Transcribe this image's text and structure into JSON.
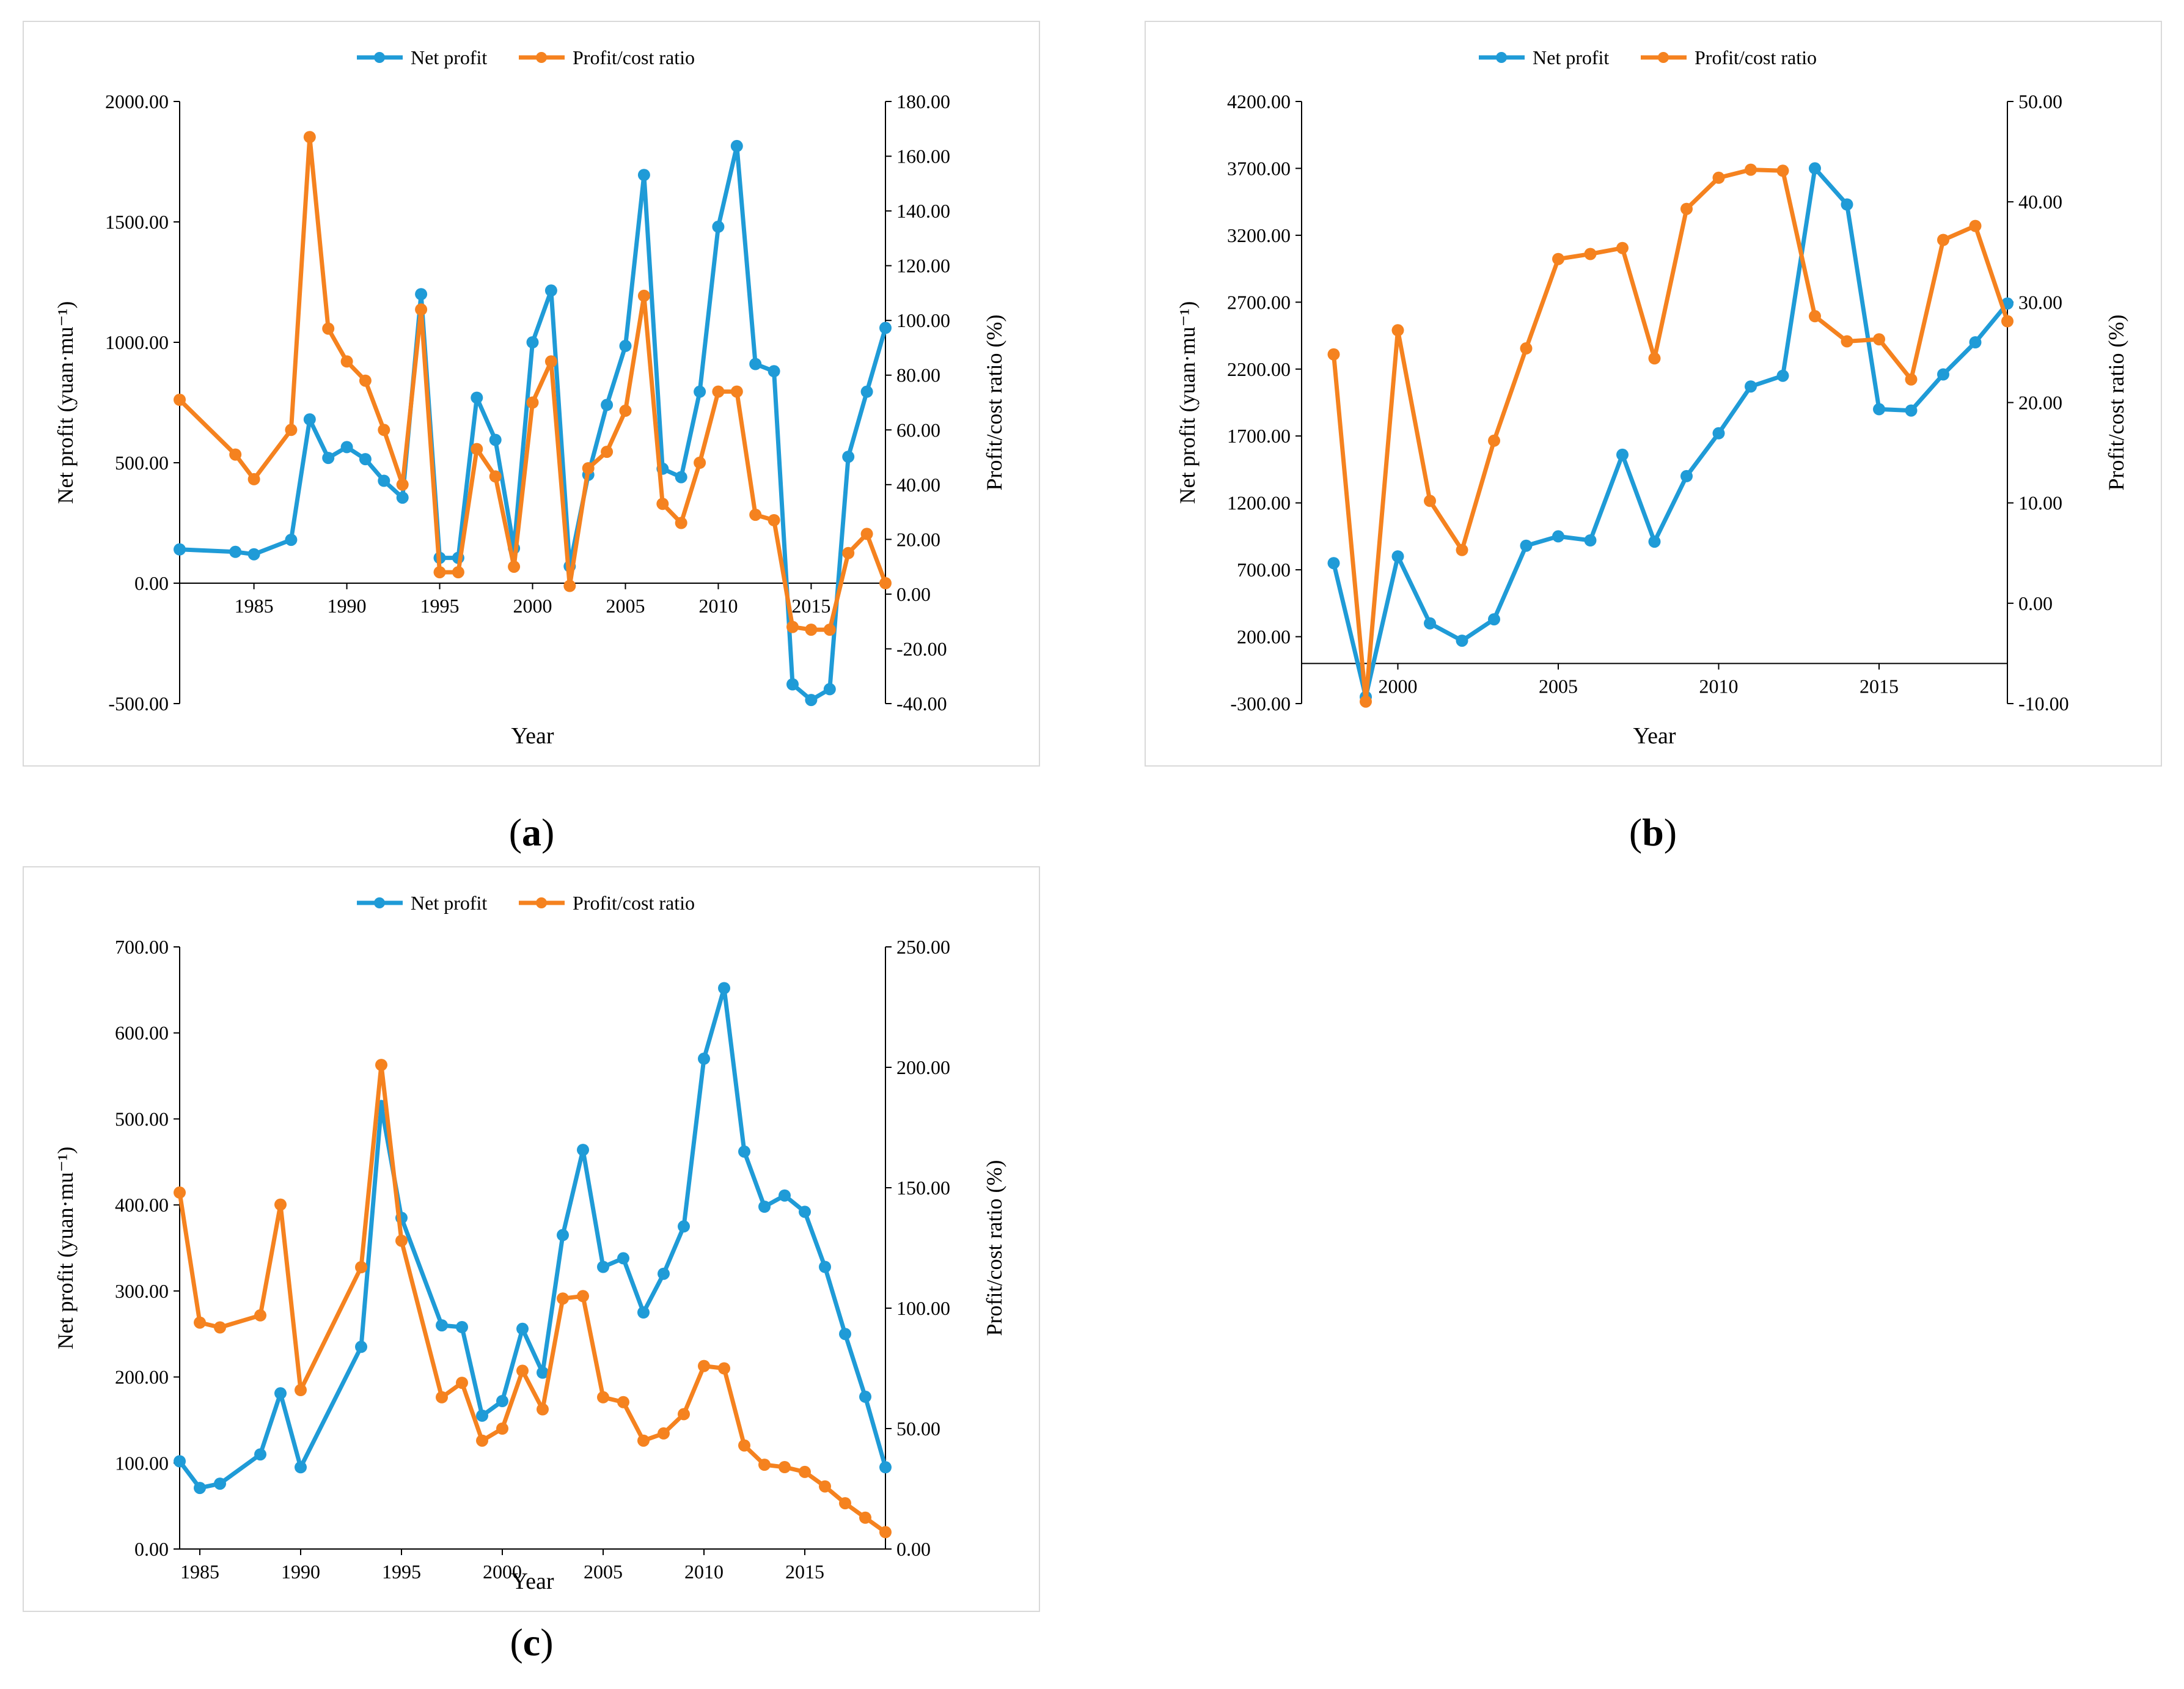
{
  "captions": {
    "a": {
      "open": "(",
      "letter": "a",
      "close": ")"
    },
    "b": {
      "open": "(",
      "letter": "b",
      "close": ")"
    },
    "c": {
      "open": "(",
      "letter": "c",
      "close": ")"
    }
  },
  "colors": {
    "net_profit": "#1f9bd7",
    "ratio": "#f5821f",
    "axis": "#000000",
    "border": "#d9d9d9"
  },
  "chart_data": [
    {
      "id": "a",
      "type": "line",
      "title": "",
      "xlabel": "Year",
      "ylabel_left": "Net profit (yuan·mu⁻¹)",
      "ylabel_right": "Profit/cost ratio (%)",
      "legend": {
        "placement": "top-center",
        "entries": [
          "Net profit",
          "Profit/cost ratio"
        ]
      },
      "grid": false,
      "xlim": [
        1981,
        2019
      ],
      "xticks": [
        1985,
        1990,
        1995,
        2000,
        2005,
        2010,
        2015
      ],
      "ylim_left": [
        -500,
        2000
      ],
      "yticks_left": [
        "-500.00",
        "0.00",
        "500.00",
        "1000.00",
        "1500.00",
        "2000.00"
      ],
      "ylim_right": [
        -40,
        180
      ],
      "yticks_right": [
        "-40.00",
        "-20.00",
        "0.00",
        "20.00",
        "40.00",
        "60.00",
        "80.00",
        "100.00",
        "120.00",
        "140.00",
        "160.00",
        "180.00"
      ],
      "series": [
        {
          "name": "Net profit",
          "axis": "left",
          "x": [
            1981,
            1984,
            1985,
            1987,
            1988,
            1989,
            1990,
            1991,
            1992,
            1993,
            1994,
            1995,
            1996,
            1997,
            1998,
            1999,
            2000,
            2001,
            2002,
            2003,
            2004,
            2005,
            2006,
            2007,
            2008,
            2009,
            2010,
            2011,
            2012,
            2013,
            2014,
            2015,
            2016,
            2017,
            2018,
            2019
          ],
          "y": [
            140,
            130,
            120,
            180,
            680,
            520,
            565,
            515,
            425,
            355,
            1200,
            105,
            105,
            770,
            595,
            145,
            1000,
            1215,
            70,
            450,
            740,
            985,
            1695,
            475,
            440,
            795,
            1480,
            1815,
            910,
            880,
            -420,
            -485,
            -440,
            525,
            795,
            1060
          ]
        },
        {
          "name": "Profit/cost ratio",
          "axis": "right",
          "x": [
            1981,
            1984,
            1985,
            1987,
            1988,
            1989,
            1990,
            1991,
            1992,
            1993,
            1994,
            1995,
            1996,
            1997,
            1998,
            1999,
            2000,
            2001,
            2002,
            2003,
            2004,
            2005,
            2006,
            2007,
            2008,
            2009,
            2010,
            2011,
            2012,
            2013,
            2014,
            2015,
            2016,
            2017,
            2018,
            2019
          ],
          "y": [
            71,
            51,
            42,
            60,
            167,
            97,
            85,
            78,
            60,
            40,
            104,
            8,
            8,
            53,
            43,
            10,
            70,
            85,
            3,
            46,
            52,
            67,
            109,
            33,
            26,
            48,
            74,
            74,
            29,
            27,
            -12,
            -13,
            -13,
            15,
            22,
            4
          ]
        }
      ]
    },
    {
      "id": "b",
      "type": "line",
      "title": "",
      "xlabel": "Year",
      "ylabel_left": "Net profit (yuan·mu⁻¹)",
      "ylabel_right": "Profit/cost ratio (%)",
      "legend": {
        "placement": "top-center",
        "entries": [
          "Net profit",
          "Profit/cost ratio"
        ]
      },
      "grid": false,
      "xlim": [
        1997,
        2019
      ],
      "xticks": [
        2000,
        2005,
        2010,
        2015
      ],
      "ylim_left": [
        -300,
        4200
      ],
      "yticks_left": [
        "-300.00",
        "200.00",
        "700.00",
        "1200.00",
        "1700.00",
        "2200.00",
        "2700.00",
        "3200.00",
        "3700.00",
        "4200.00"
      ],
      "ylim_right": [
        -10,
        50
      ],
      "yticks_right": [
        "-10.00",
        "0.00",
        "10.00",
        "20.00",
        "30.00",
        "40.00",
        "50.00"
      ],
      "series": [
        {
          "name": "Net profit",
          "axis": "left",
          "x": [
            1998,
            1999,
            2000,
            2001,
            2002,
            2003,
            2004,
            2005,
            2006,
            2007,
            2008,
            2009,
            2010,
            2011,
            2012,
            2013,
            2014,
            2015,
            2016,
            2017,
            2018,
            2019
          ],
          "y": [
            750,
            -250,
            800,
            300,
            170,
            330,
            880,
            950,
            920,
            1560,
            910,
            1400,
            1720,
            2070,
            2150,
            3700,
            3430,
            1900,
            1890,
            2160,
            2400,
            2690
          ]
        },
        {
          "name": "Profit/cost ratio",
          "axis": "right",
          "x": [
            1998,
            1999,
            2000,
            2001,
            2002,
            2003,
            2004,
            2005,
            2006,
            2007,
            2008,
            2009,
            2010,
            2011,
            2012,
            2013,
            2014,
            2015,
            2016,
            2017,
            2018,
            2019
          ],
          "y": [
            24.8,
            -9.8,
            27.2,
            10.2,
            5.3,
            16.2,
            25.4,
            34.3,
            34.8,
            35.4,
            24.4,
            39.3,
            42.4,
            43.2,
            43.1,
            28.6,
            26.1,
            26.3,
            22.3,
            36.2,
            37.6,
            28.1
          ]
        }
      ]
    },
    {
      "id": "c",
      "type": "line",
      "title": "",
      "xlabel": "Year",
      "ylabel_left": "Net profit (yuan·mu⁻¹)",
      "ylabel_right": "Profit/cost ratio (%)",
      "legend": {
        "placement": "top-center",
        "entries": [
          "Net profit",
          "Profit/cost ratio"
        ]
      },
      "grid": false,
      "xlim": [
        1984,
        2019
      ],
      "xticks": [
        1985,
        1990,
        1995,
        2000,
        2005,
        2010,
        2015
      ],
      "ylim_left": [
        0,
        700
      ],
      "yticks_left": [
        "0.00",
        "100.00",
        "200.00",
        "300.00",
        "400.00",
        "500.00",
        "600.00",
        "700.00"
      ],
      "ylim_right": [
        0,
        250
      ],
      "yticks_right": [
        "0.00",
        "50.00",
        "100.00",
        "150.00",
        "200.00",
        "250.00"
      ],
      "series": [
        {
          "name": "Net profit",
          "axis": "left",
          "x": [
            1984,
            1985,
            1986,
            1988,
            1989,
            1990,
            1993,
            1994,
            1995,
            1997,
            1998,
            1999,
            2000,
            2001,
            2002,
            2003,
            2004,
            2005,
            2006,
            2007,
            2008,
            2009,
            2010,
            2011,
            2012,
            2013,
            2014,
            2015,
            2016,
            2017,
            2018,
            2019
          ],
          "y": [
            102,
            71,
            76,
            110,
            181,
            95,
            235,
            515,
            385,
            260,
            258,
            155,
            172,
            256,
            205,
            365,
            464,
            328,
            338,
            275,
            320,
            375,
            570,
            652,
            462,
            398,
            411,
            392,
            328,
            250,
            177,
            95
          ]
        },
        {
          "name": "Profit/cost ratio",
          "axis": "right",
          "x": [
            1984,
            1985,
            1986,
            1988,
            1989,
            1990,
            1993,
            1994,
            1995,
            1997,
            1998,
            1999,
            2000,
            2001,
            2002,
            2003,
            2004,
            2005,
            2006,
            2007,
            2008,
            2009,
            2010,
            2011,
            2012,
            2013,
            2014,
            2015,
            2016,
            2017,
            2018,
            2019
          ],
          "y": [
            148,
            94,
            92,
            97,
            143,
            66,
            117,
            201,
            128,
            63,
            69,
            45,
            50,
            74,
            58,
            104,
            105,
            63,
            61,
            45,
            48,
            56,
            76,
            75,
            43,
            35,
            34,
            32,
            26,
            19,
            13,
            7
          ]
        }
      ]
    }
  ]
}
